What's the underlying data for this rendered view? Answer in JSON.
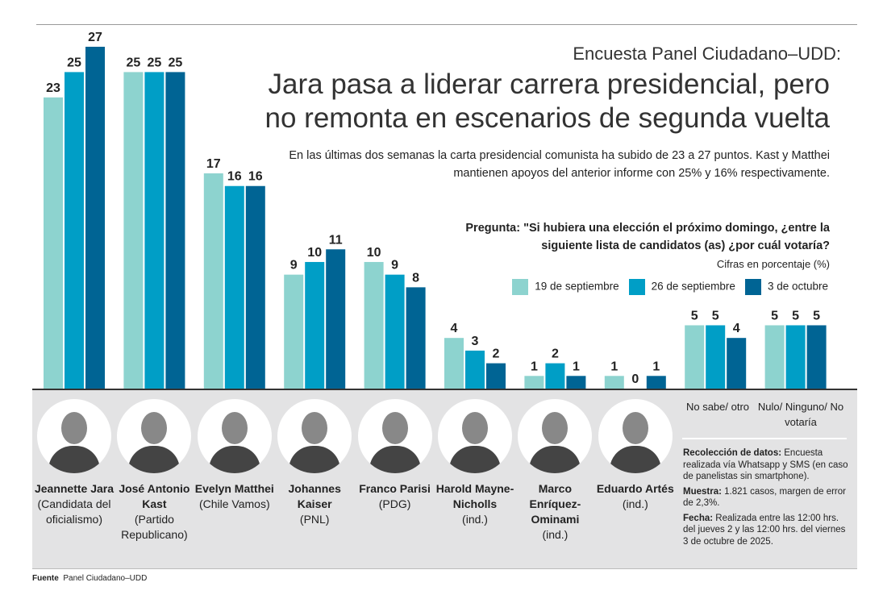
{
  "header": {
    "kicker": "Encuesta Panel Ciudadano–UDD:",
    "title": "Jara pasa a liderar carrera presidencial, pero no remonta en escenarios de segunda vuelta",
    "subtitle": "En las últimas dos semanas la carta presidencial comunista ha subido de 23 a 27 puntos. Kast y Matthei mantienen apoyos del anterior informe con 25% y 16% respectivamente."
  },
  "question": "Pregunta: \"Si hubiera una elección el próximo domingo, ¿entre la siguiente lista de candidatos (as) ¿por cuál votaría?",
  "unit": "Cifras en porcentaje (%)",
  "candidates": [
    {
      "name": "Jeannette Jara",
      "party": "(Candidata del oficialismo)"
    },
    {
      "name": "José Antonio Kast",
      "party": "(Partido Republicano)"
    },
    {
      "name": "Evelyn Matthei",
      "party": "(Chile Vamos)"
    },
    {
      "name": "Johannes Kaiser",
      "party": "(PNL)"
    },
    {
      "name": "Franco Parisi",
      "party": "(PDG)"
    },
    {
      "name": "Harold Mayne-Nicholls",
      "party": "(ind.)"
    },
    {
      "name": "Marco Enríquez-Ominami",
      "party": "(ind.)"
    },
    {
      "name": "Eduardo Artés",
      "party": "(ind.)"
    }
  ],
  "others": [
    "No sabe/ otro",
    "Nulo/ Ninguno/ No votaría"
  ],
  "notes": [
    {
      "label": "Recolección de datos:",
      "text": " Encuesta realizada vía Whatsapp y SMS (en caso de panelistas sin smartphone)."
    },
    {
      "label": "Muestra:",
      "text": " 1.821 casos, margen de error de 2,3%."
    },
    {
      "label": "Fecha:",
      "text": " Realizada entre las 12:00 hrs. del jueves 2 y las 12:00 hrs. del viernes 3 de octubre de 2025."
    }
  ],
  "source": {
    "label": "Fuente",
    "text": "Panel Ciudadano–UDD"
  },
  "chart_data": {
    "type": "bar",
    "categories": [
      "Jeannette Jara",
      "José Antonio Kast",
      "Evelyn Matthei",
      "Johannes Kaiser",
      "Franco Parisi",
      "Harold Mayne-Nicholls",
      "Marco Enríquez-Ominami",
      "Eduardo Artés",
      "No sabe/ otro",
      "Nulo/ Ninguno/ No votaría"
    ],
    "series": [
      {
        "name": "19 de septiembre",
        "color": "#8dd3cf",
        "values": [
          23,
          25,
          17,
          9,
          10,
          4,
          1,
          1,
          5,
          5
        ]
      },
      {
        "name": "26 de septiembre",
        "color": "#009ec6",
        "values": [
          25,
          25,
          16,
          10,
          9,
          3,
          2,
          0,
          5,
          5
        ]
      },
      {
        "name": "3 de octubre",
        "color": "#006494",
        "values": [
          27,
          25,
          16,
          11,
          8,
          2,
          1,
          1,
          4,
          5
        ]
      }
    ],
    "ylim": [
      0,
      27
    ],
    "grid": false,
    "legend": "top-right"
  }
}
